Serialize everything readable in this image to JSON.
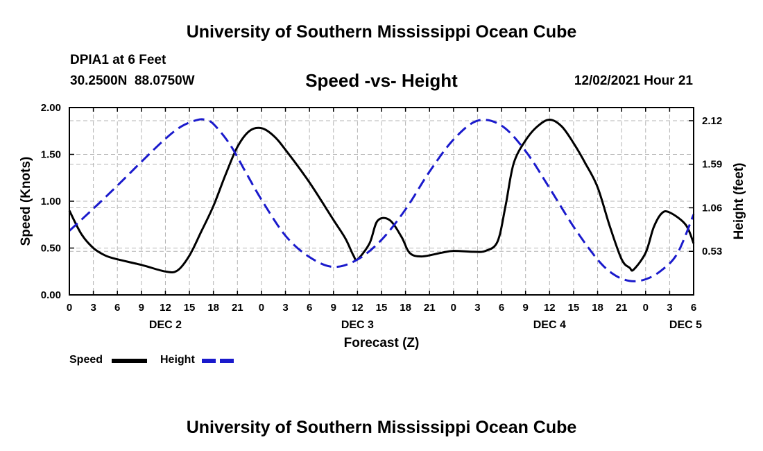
{
  "header": {
    "title": "University of Southern Mississippi Ocean Cube",
    "station": "DPIA1 at 6 Feet",
    "coords": "30.2500N  88.0750W",
    "datetime": "12/02/2021 Hour 21",
    "footer_title": "University of Southern Mississippi Ocean Cube"
  },
  "chart_data": {
    "type": "line",
    "title": "Speed -vs- Height",
    "xlabel": "Forecast (Z)",
    "ylabel": "Speed (Knots)",
    "y2label": "Height (feet)",
    "x_tick_labels": [
      "0",
      "3",
      "6",
      "9",
      "12",
      "15",
      "18",
      "21",
      "0",
      "3",
      "6",
      "9",
      "12",
      "15",
      "18",
      "21",
      "0",
      "3",
      "6",
      "9",
      "12",
      "15",
      "18",
      "21",
      "0",
      "3",
      "6"
    ],
    "x_range_hours": [
      0,
      78
    ],
    "date_labels": [
      {
        "label": "DEC 2",
        "hour": 12
      },
      {
        "label": "DEC 3",
        "hour": 36
      },
      {
        "label": "DEC 4",
        "hour": 60
      },
      {
        "label": "DEC 5",
        "hour": 77
      }
    ],
    "ylim": [
      0,
      2.0
    ],
    "y_ticks": [
      "0.00",
      "0.50",
      "1.00",
      "1.50",
      "2.00"
    ],
    "y2lim": [
      0,
      2.28
    ],
    "y2_ticks": [
      0.53,
      1.06,
      1.59,
      2.12
    ],
    "y2_tick_labels": [
      "0.53",
      "1.06",
      "1.59",
      "2.12"
    ],
    "grid": true,
    "series": [
      {
        "name": "Speed",
        "axis": "left",
        "color": "#000000",
        "dash": "solid",
        "x": [
          0,
          1.5,
          3,
          4.5,
          6,
          9,
          12,
          13.5,
          15,
          16.5,
          18,
          19.5,
          21,
          22.5,
          24,
          25.5,
          27,
          30,
          33,
          34.5,
          35.5,
          36,
          37.5,
          38.5,
          40,
          41.5,
          42.5,
          44,
          46.5,
          48,
          50.5,
          52,
          53.5,
          54.5,
          55.5,
          57,
          58.5,
          60,
          61.5,
          63,
          64.5,
          66,
          67.5,
          69,
          70,
          70.5,
          72,
          73,
          74,
          75,
          77,
          78
        ],
        "y": [
          0.9,
          0.65,
          0.5,
          0.42,
          0.38,
          0.32,
          0.25,
          0.26,
          0.42,
          0.68,
          0.95,
          1.28,
          1.58,
          1.75,
          1.78,
          1.7,
          1.55,
          1.2,
          0.8,
          0.6,
          0.42,
          0.38,
          0.55,
          0.79,
          0.8,
          0.62,
          0.45,
          0.41,
          0.45,
          0.47,
          0.46,
          0.47,
          0.57,
          0.95,
          1.4,
          1.65,
          1.8,
          1.87,
          1.8,
          1.62,
          1.4,
          1.15,
          0.74,
          0.38,
          0.29,
          0.27,
          0.45,
          0.72,
          0.87,
          0.88,
          0.75,
          0.55
        ]
      },
      {
        "name": "Height",
        "axis": "right",
        "color": "#1a1acc",
        "dash": "dashed",
        "x": [
          0,
          3,
          6,
          9,
          12,
          14,
          16,
          17,
          18,
          20,
          22,
          24,
          27,
          30,
          33,
          36,
          39,
          42,
          45,
          48,
          51,
          54,
          57,
          60,
          63,
          66,
          68,
          70,
          72,
          74,
          76,
          78
        ],
        "y": [
          0.78,
          1.05,
          1.33,
          1.62,
          1.9,
          2.05,
          2.13,
          2.13,
          2.08,
          1.84,
          1.5,
          1.16,
          0.72,
          0.46,
          0.34,
          0.43,
          0.67,
          1.04,
          1.5,
          1.89,
          2.12,
          2.06,
          1.75,
          1.3,
          0.83,
          0.43,
          0.25,
          0.17,
          0.19,
          0.3,
          0.51,
          0.98
        ]
      }
    ]
  },
  "legend": {
    "items": [
      {
        "label": "Speed",
        "color": "#000000",
        "dash": "solid"
      },
      {
        "label": "Height",
        "color": "#1a1acc",
        "dash": "dashed"
      }
    ]
  }
}
